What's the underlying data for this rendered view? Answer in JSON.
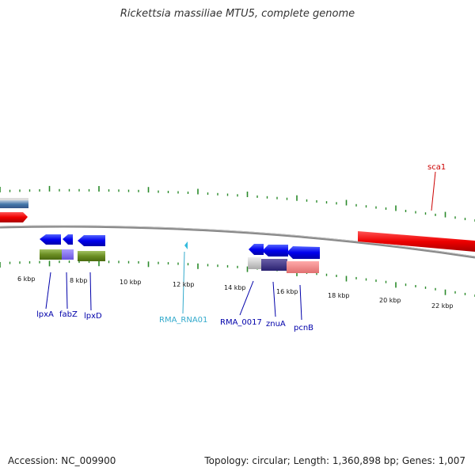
{
  "title": "Rickettsia massiliae MTU5, complete genome",
  "footer": {
    "accession": "Accession: NC_009900",
    "summary": "Topology: circular; Length: 1,360,898 bp; Genes: 1,007"
  },
  "scale_labels": [
    "6 kbp",
    "8 kbp",
    "10 kbp",
    "12 kbp",
    "14 kbp",
    "16 kbp",
    "18 kbp",
    "20 kbp",
    "22 kbp"
  ],
  "gene_labels": [
    {
      "text": "lpxA",
      "color": "#0000aa"
    },
    {
      "text": "fabZ",
      "color": "#0000aa"
    },
    {
      "text": "lpxD",
      "color": "#0000aa"
    },
    {
      "text": "RMA_RNA01",
      "color": "#33aacc"
    },
    {
      "text": "RMA_0017",
      "color": "#0000aa"
    },
    {
      "text": "znuA",
      "color": "#0000aa"
    },
    {
      "text": "pcnB",
      "color": "#0000aa"
    },
    {
      "text": "sca1",
      "color": "#cc0000"
    }
  ],
  "colors": {
    "forward_gene": "#0000ee",
    "reverse_gene": "#0000ee",
    "sca1": "#ee0000",
    "tick": "#2a8a2a",
    "backbone": "#888888",
    "rna": "#33bbdd"
  }
}
